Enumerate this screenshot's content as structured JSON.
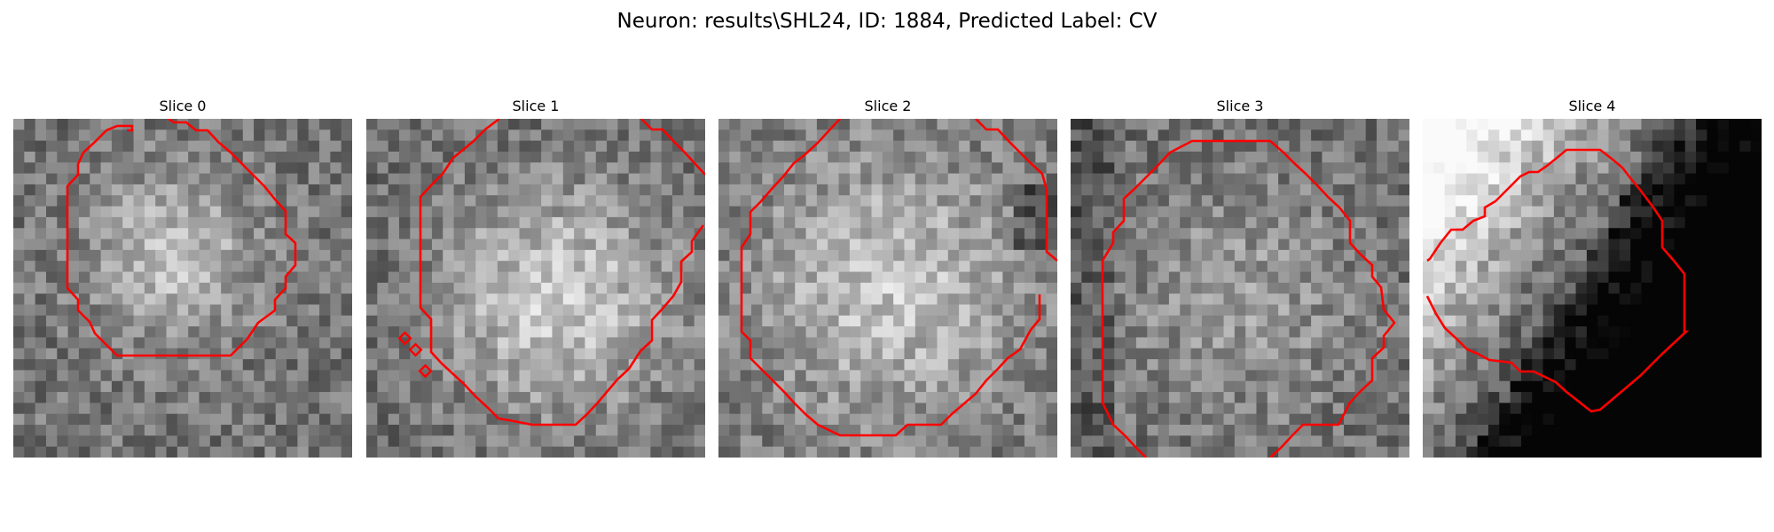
{
  "figure": {
    "title": "Neuron: results\\SHL24, ID: 1884, Predicted Label: CV"
  },
  "contour_color": "#ff0000",
  "colormap": "gray",
  "panels": [
    {
      "title": "Slice 0",
      "center_brightness": 0.7,
      "structure": "round-blob"
    },
    {
      "title": "Slice 1",
      "center_brightness": 0.8,
      "structure": "large-oval"
    },
    {
      "title": "Slice 2",
      "center_brightness": 0.76,
      "structure": "large-oval"
    },
    {
      "title": "Slice 3",
      "center_brightness": 0.6,
      "structure": "textured-region"
    },
    {
      "title": "Slice 4",
      "center_brightness": 0.82,
      "structure": "bright-upper-left-dark-lower-right"
    }
  ]
}
